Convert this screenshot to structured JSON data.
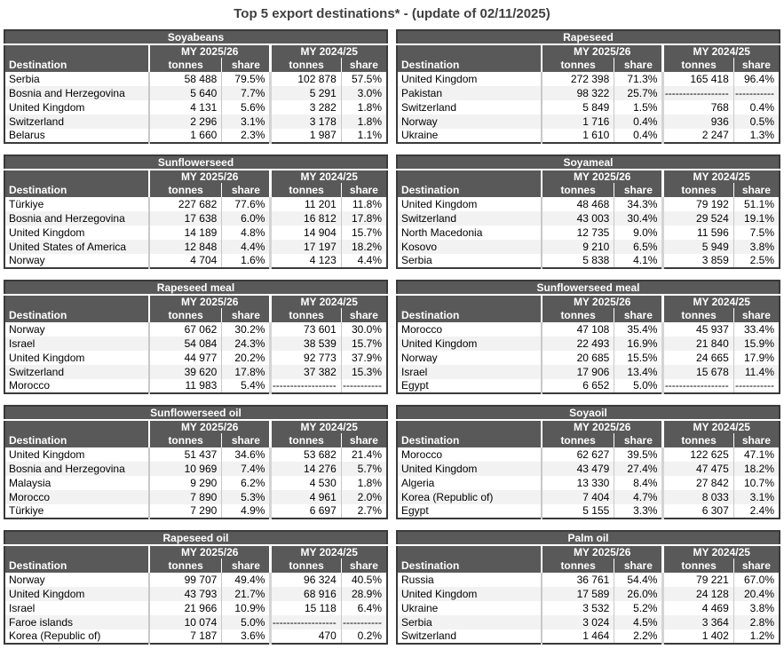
{
  "page_title": "Top 5 export destinations* - (update of 02/11/2025)",
  "colors": {
    "header_bg": "#595959",
    "header_text": "#ffffff",
    "row_alt_bg": "#f2f2f2",
    "table_border": "#3a3a3a",
    "title_text": "#404040"
  },
  "columns": {
    "destination": "Destination",
    "tonnes": "tonnes",
    "share": "share"
  },
  "period_headers": {
    "my_2025_26": "MY 2025/26",
    "my_2024_25": "MY 2024/25"
  },
  "tables": [
    {
      "title": "Soyabeans",
      "rows": [
        {
          "destination": "Serbia",
          "tonnes_2025_26": "58 488",
          "share_2025_26": "79.5%",
          "tonnes_2024_25": "102 878",
          "share_2024_25": "57.5%"
        },
        {
          "destination": "Bosnia and Herzegovina",
          "tonnes_2025_26": "5 640",
          "share_2025_26": "7.7%",
          "tonnes_2024_25": "5 291",
          "share_2024_25": "3.0%"
        },
        {
          "destination": "United Kingdom",
          "tonnes_2025_26": "4 131",
          "share_2025_26": "5.6%",
          "tonnes_2024_25": "3 282",
          "share_2024_25": "1.8%"
        },
        {
          "destination": "Switzerland",
          "tonnes_2025_26": "2 296",
          "share_2025_26": "3.1%",
          "tonnes_2024_25": "3 178",
          "share_2024_25": "1.8%"
        },
        {
          "destination": "Belarus",
          "tonnes_2025_26": "1 660",
          "share_2025_26": "2.3%",
          "tonnes_2024_25": "1 987",
          "share_2024_25": "1.1%"
        }
      ]
    },
    {
      "title": "Rapeseed",
      "rows": [
        {
          "destination": "United Kingdom",
          "tonnes_2025_26": "272 398",
          "share_2025_26": "71.3%",
          "tonnes_2024_25": "165 418",
          "share_2024_25": "96.4%"
        },
        {
          "destination": "Pakistan",
          "tonnes_2025_26": "98 322",
          "share_2025_26": "25.7%",
          "tonnes_2024_25": "------------------",
          "share_2024_25": "-----------"
        },
        {
          "destination": "Switzerland",
          "tonnes_2025_26": "5 849",
          "share_2025_26": "1.5%",
          "tonnes_2024_25": "768",
          "share_2024_25": "0.4%"
        },
        {
          "destination": "Norway",
          "tonnes_2025_26": "1 716",
          "share_2025_26": "0.4%",
          "tonnes_2024_25": "936",
          "share_2024_25": "0.5%"
        },
        {
          "destination": "Ukraine",
          "tonnes_2025_26": "1 610",
          "share_2025_26": "0.4%",
          "tonnes_2024_25": "2 247",
          "share_2024_25": "1.3%"
        }
      ]
    },
    {
      "title": "Sunflowerseed",
      "rows": [
        {
          "destination": "Türkiye",
          "tonnes_2025_26": "227 682",
          "share_2025_26": "77.6%",
          "tonnes_2024_25": "11 201",
          "share_2024_25": "11.8%"
        },
        {
          "destination": "Bosnia and Herzegovina",
          "tonnes_2025_26": "17 638",
          "share_2025_26": "6.0%",
          "tonnes_2024_25": "16 812",
          "share_2024_25": "17.8%"
        },
        {
          "destination": "United Kingdom",
          "tonnes_2025_26": "14 189",
          "share_2025_26": "4.8%",
          "tonnes_2024_25": "14 904",
          "share_2024_25": "15.7%"
        },
        {
          "destination": "United States of America",
          "tonnes_2025_26": "12 848",
          "share_2025_26": "4.4%",
          "tonnes_2024_25": "17 197",
          "share_2024_25": "18.2%"
        },
        {
          "destination": "Norway",
          "tonnes_2025_26": "4 704",
          "share_2025_26": "1.6%",
          "tonnes_2024_25": "4 123",
          "share_2024_25": "4.4%"
        }
      ]
    },
    {
      "title": "Soyameal",
      "rows": [
        {
          "destination": "United Kingdom",
          "tonnes_2025_26": "48 468",
          "share_2025_26": "34.3%",
          "tonnes_2024_25": "79 192",
          "share_2024_25": "51.1%"
        },
        {
          "destination": "Switzerland",
          "tonnes_2025_26": "43 003",
          "share_2025_26": "30.4%",
          "tonnes_2024_25": "29 524",
          "share_2024_25": "19.1%"
        },
        {
          "destination": "North Macedonia",
          "tonnes_2025_26": "12 735",
          "share_2025_26": "9.0%",
          "tonnes_2024_25": "11 596",
          "share_2024_25": "7.5%"
        },
        {
          "destination": "Kosovo",
          "tonnes_2025_26": "9 210",
          "share_2025_26": "6.5%",
          "tonnes_2024_25": "5 949",
          "share_2024_25": "3.8%"
        },
        {
          "destination": "Serbia",
          "tonnes_2025_26": "5 838",
          "share_2025_26": "4.1%",
          "tonnes_2024_25": "3 859",
          "share_2024_25": "2.5%"
        }
      ]
    },
    {
      "title": "Rapeseed meal",
      "rows": [
        {
          "destination": "Norway",
          "tonnes_2025_26": "67 062",
          "share_2025_26": "30.2%",
          "tonnes_2024_25": "73 601",
          "share_2024_25": "30.0%"
        },
        {
          "destination": "Israel",
          "tonnes_2025_26": "54 084",
          "share_2025_26": "24.3%",
          "tonnes_2024_25": "38 539",
          "share_2024_25": "15.7%"
        },
        {
          "destination": "United Kingdom",
          "tonnes_2025_26": "44 977",
          "share_2025_26": "20.2%",
          "tonnes_2024_25": "92 773",
          "share_2024_25": "37.9%"
        },
        {
          "destination": "Switzerland",
          "tonnes_2025_26": "39 620",
          "share_2025_26": "17.8%",
          "tonnes_2024_25": "37 382",
          "share_2024_25": "15.3%"
        },
        {
          "destination": "Morocco",
          "tonnes_2025_26": "11 983",
          "share_2025_26": "5.4%",
          "tonnes_2024_25": "------------------",
          "share_2024_25": "-----------"
        }
      ]
    },
    {
      "title": "Sunflowerseed meal",
      "rows": [
        {
          "destination": "Morocco",
          "tonnes_2025_26": "47 108",
          "share_2025_26": "35.4%",
          "tonnes_2024_25": "45 937",
          "share_2024_25": "33.4%"
        },
        {
          "destination": "United Kingdom",
          "tonnes_2025_26": "22 493",
          "share_2025_26": "16.9%",
          "tonnes_2024_25": "21 840",
          "share_2024_25": "15.9%"
        },
        {
          "destination": "Norway",
          "tonnes_2025_26": "20 685",
          "share_2025_26": "15.5%",
          "tonnes_2024_25": "24 665",
          "share_2024_25": "17.9%"
        },
        {
          "destination": "Israel",
          "tonnes_2025_26": "17 906",
          "share_2025_26": "13.4%",
          "tonnes_2024_25": "15 678",
          "share_2024_25": "11.4%"
        },
        {
          "destination": "Egypt",
          "tonnes_2025_26": "6 652",
          "share_2025_26": "5.0%",
          "tonnes_2024_25": "------------------",
          "share_2024_25": "-----------"
        }
      ]
    },
    {
      "title": "Sunflowerseed oil",
      "rows": [
        {
          "destination": "United Kingdom",
          "tonnes_2025_26": "51 437",
          "share_2025_26": "34.6%",
          "tonnes_2024_25": "53 682",
          "share_2024_25": "21.4%"
        },
        {
          "destination": "Bosnia and Herzegovina",
          "tonnes_2025_26": "10 969",
          "share_2025_26": "7.4%",
          "tonnes_2024_25": "14 276",
          "share_2024_25": "5.7%"
        },
        {
          "destination": "Malaysia",
          "tonnes_2025_26": "9 290",
          "share_2025_26": "6.2%",
          "tonnes_2024_25": "4 530",
          "share_2024_25": "1.8%"
        },
        {
          "destination": "Morocco",
          "tonnes_2025_26": "7 890",
          "share_2025_26": "5.3%",
          "tonnes_2024_25": "4 961",
          "share_2024_25": "2.0%"
        },
        {
          "destination": "Türkiye",
          "tonnes_2025_26": "7 290",
          "share_2025_26": "4.9%",
          "tonnes_2024_25": "6 697",
          "share_2024_25": "2.7%"
        }
      ]
    },
    {
      "title": "Soyaoil",
      "rows": [
        {
          "destination": "Morocco",
          "tonnes_2025_26": "62 627",
          "share_2025_26": "39.5%",
          "tonnes_2024_25": "122 625",
          "share_2024_25": "47.1%"
        },
        {
          "destination": "United Kingdom",
          "tonnes_2025_26": "43 479",
          "share_2025_26": "27.4%",
          "tonnes_2024_25": "47 475",
          "share_2024_25": "18.2%"
        },
        {
          "destination": "Algeria",
          "tonnes_2025_26": "13 330",
          "share_2025_26": "8.4%",
          "tonnes_2024_25": "27 842",
          "share_2024_25": "10.7%"
        },
        {
          "destination": "Korea (Republic of)",
          "tonnes_2025_26": "7 404",
          "share_2025_26": "4.7%",
          "tonnes_2024_25": "8 033",
          "share_2024_25": "3.1%"
        },
        {
          "destination": "Egypt",
          "tonnes_2025_26": "5 155",
          "share_2025_26": "3.3%",
          "tonnes_2024_25": "6 307",
          "share_2024_25": "2.4%"
        }
      ]
    },
    {
      "title": "Rapeseed oil",
      "rows": [
        {
          "destination": "Norway",
          "tonnes_2025_26": "99 707",
          "share_2025_26": "49.4%",
          "tonnes_2024_25": "96 324",
          "share_2024_25": "40.5%"
        },
        {
          "destination": "United Kingdom",
          "tonnes_2025_26": "43 793",
          "share_2025_26": "21.7%",
          "tonnes_2024_25": "68 916",
          "share_2024_25": "28.9%"
        },
        {
          "destination": "Israel",
          "tonnes_2025_26": "21 966",
          "share_2025_26": "10.9%",
          "tonnes_2024_25": "15 118",
          "share_2024_25": "6.4%"
        },
        {
          "destination": "Faroe islands",
          "tonnes_2025_26": "10 074",
          "share_2025_26": "5.0%",
          "tonnes_2024_25": "------------------",
          "share_2024_25": "-----------"
        },
        {
          "destination": "Korea (Republic of)",
          "tonnes_2025_26": "7 187",
          "share_2025_26": "3.6%",
          "tonnes_2024_25": "470",
          "share_2024_25": "0.2%"
        }
      ]
    },
    {
      "title": "Palm oil",
      "rows": [
        {
          "destination": "Russia",
          "tonnes_2025_26": "36 761",
          "share_2025_26": "54.4%",
          "tonnes_2024_25": "79 221",
          "share_2024_25": "67.0%"
        },
        {
          "destination": "United Kingdom",
          "tonnes_2025_26": "17 589",
          "share_2025_26": "26.0%",
          "tonnes_2024_25": "24 128",
          "share_2024_25": "20.4%"
        },
        {
          "destination": "Ukraine",
          "tonnes_2025_26": "3 532",
          "share_2025_26": "5.2%",
          "tonnes_2024_25": "4 469",
          "share_2024_25": "3.8%"
        },
        {
          "destination": "Serbia",
          "tonnes_2025_26": "3 024",
          "share_2025_26": "4.5%",
          "tonnes_2024_25": "3 364",
          "share_2024_25": "2.8%"
        },
        {
          "destination": "Switzerland",
          "tonnes_2025_26": "1 464",
          "share_2025_26": "2.2%",
          "tonnes_2024_25": "1 402",
          "share_2024_25": "1.2%"
        }
      ]
    }
  ]
}
